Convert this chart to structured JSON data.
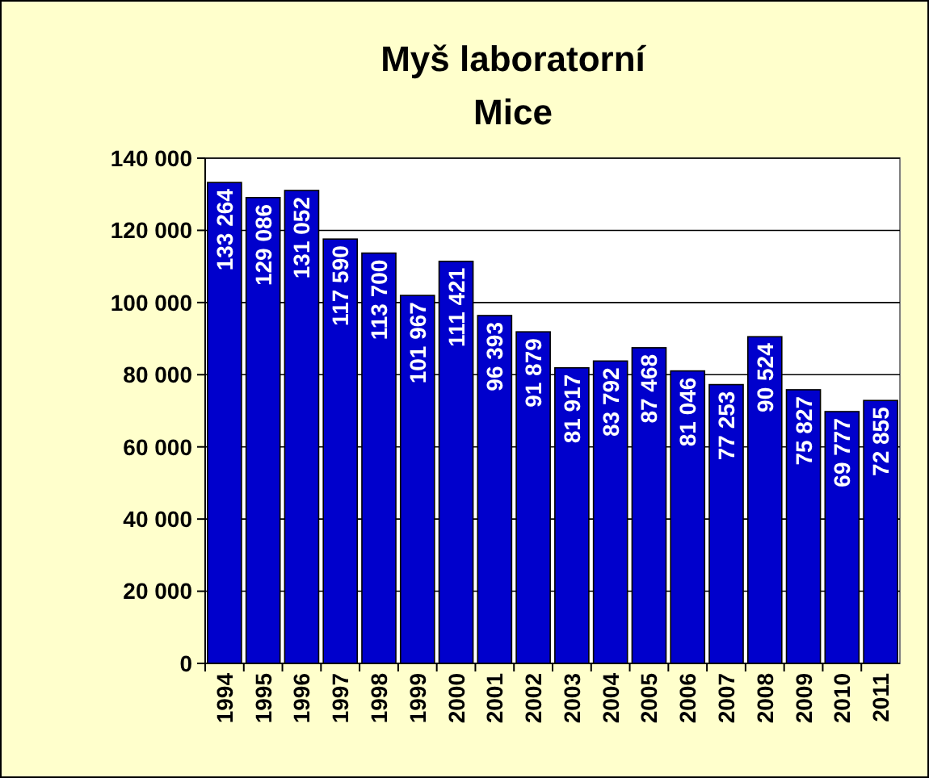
{
  "chart_data": {
    "type": "bar",
    "title": "Myš laboratorní",
    "subtitle": "Mice",
    "categories": [
      "1994",
      "1995",
      "1996",
      "1997",
      "1998",
      "1999",
      "2000",
      "2001",
      "2002",
      "2003",
      "2004",
      "2005",
      "2006",
      "2007",
      "2008",
      "2009",
      "2010",
      "2011"
    ],
    "values": [
      133264,
      129086,
      131052,
      117590,
      113700,
      101967,
      111421,
      96393,
      91879,
      81917,
      83792,
      87468,
      81046,
      77253,
      90524,
      75827,
      69777,
      72855
    ],
    "value_labels": [
      "133 264",
      "129 086",
      "131 052",
      "117 590",
      "113 700",
      "101 967",
      "111 421",
      "96 393",
      "91 879",
      "81 917",
      "83 792",
      "87 468",
      "81 046",
      "77 253",
      "90 524",
      "75 827",
      "69 777",
      "72 855"
    ],
    "color": "#0000cc",
    "ylim": [
      0,
      140000
    ],
    "yticks": [
      {
        "value": 0,
        "label": "0"
      },
      {
        "value": 20000,
        "label": "20 000"
      },
      {
        "value": 40000,
        "label": "40 000"
      },
      {
        "value": 60000,
        "label": "60 000"
      },
      {
        "value": 80000,
        "label": "80 000"
      },
      {
        "value": 100000,
        "label": "100 000"
      },
      {
        "value": 120000,
        "label": "120 000"
      },
      {
        "value": 140000,
        "label": "140 000"
      }
    ],
    "grid": "y"
  }
}
